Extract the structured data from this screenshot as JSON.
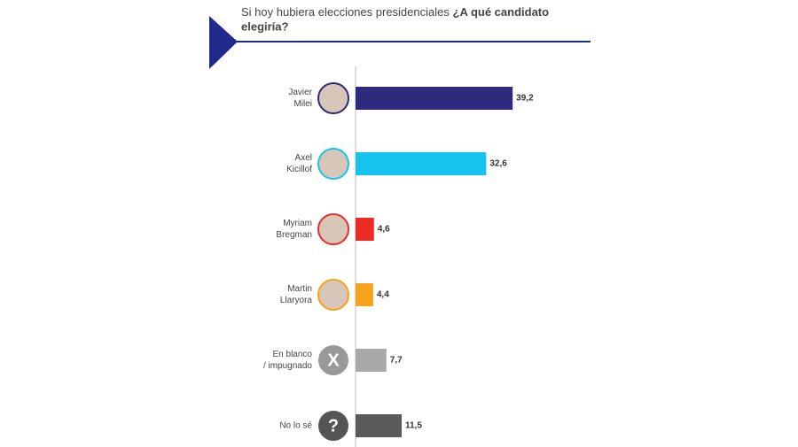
{
  "chart_data": {
    "type": "barh",
    "title_lead": "Si hoy hubiera elecciones presidenciales",
    "title_question": [
      "¿A qué candidato",
      "elegiría?"
    ],
    "categories": [
      [
        "Javier",
        "Milei"
      ],
      [
        "Axel",
        "Kicillof"
      ],
      [
        "Myriam",
        "Bregman"
      ],
      [
        "Martin",
        "Llaryora"
      ],
      [
        "En blanco",
        "/ impugnado"
      ],
      [
        "No lo sé"
      ]
    ],
    "icons": [
      null,
      null,
      null,
      null,
      "X",
      "?"
    ],
    "values": [
      39.2,
      32.6,
      4.6,
      4.4,
      7.7,
      11.5
    ],
    "value_labels": [
      "39,2",
      "32,6",
      "4,6",
      "4,4",
      "7,7",
      "11,5"
    ],
    "colors": [
      "#2e2a7e",
      "#19c3ef",
      "#ee2a24",
      "#f7a21b",
      "#a9a9a9",
      "#5a5a5a"
    ],
    "xlim": [
      0,
      100
    ]
  }
}
